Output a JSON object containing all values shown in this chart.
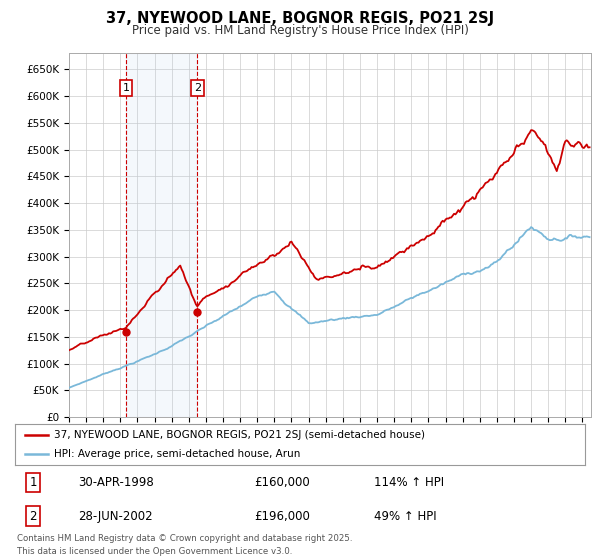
{
  "title": "37, NYEWOOD LANE, BOGNOR REGIS, PO21 2SJ",
  "subtitle": "Price paid vs. HM Land Registry's House Price Index (HPI)",
  "ylim": [
    0,
    680000
  ],
  "yticks": [
    0,
    50000,
    100000,
    150000,
    200000,
    250000,
    300000,
    350000,
    400000,
    450000,
    500000,
    550000,
    600000,
    650000
  ],
  "bg_color": "#ffffff",
  "fig_color": "#ffffff",
  "grid_color": "#cccccc",
  "hpi_color": "#7ab8d9",
  "price_color": "#cc0000",
  "transaction1": {
    "date_num": 1998.33,
    "price": 160000,
    "label": "1",
    "date_str": "30-APR-1998",
    "hpi_pct": "114%"
  },
  "transaction2": {
    "date_num": 2002.49,
    "price": 196000,
    "label": "2",
    "date_str": "28-JUN-2002",
    "hpi_pct": "49%"
  },
  "legend_line1": "37, NYEWOOD LANE, BOGNOR REGIS, PO21 2SJ (semi-detached house)",
  "legend_line2": "HPI: Average price, semi-detached house, Arun",
  "footnote": "Contains HM Land Registry data © Crown copyright and database right 2025.\nThis data is licensed under the Open Government Licence v3.0.",
  "xmin": 1995.0,
  "xmax": 2025.5
}
